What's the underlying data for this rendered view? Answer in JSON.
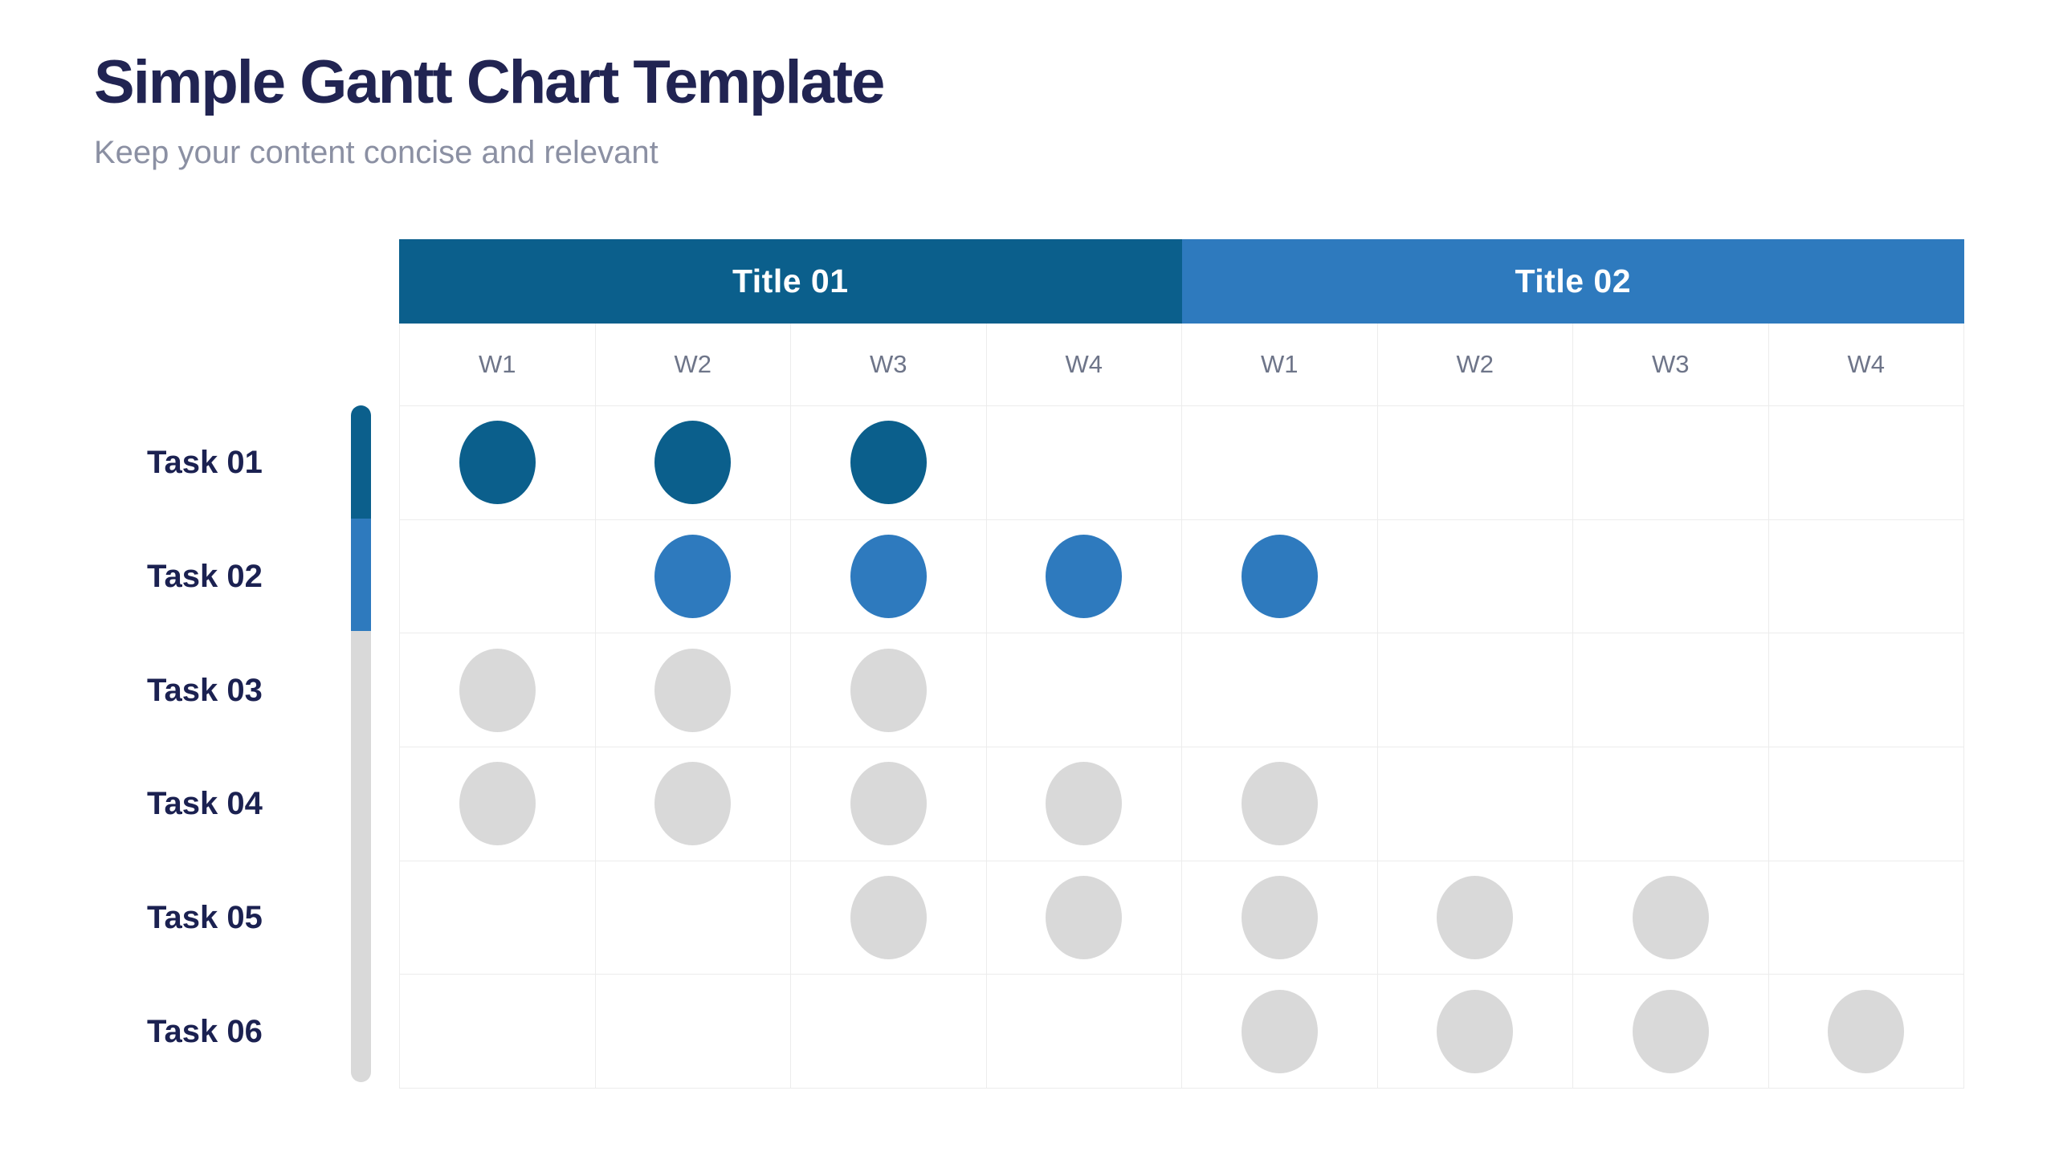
{
  "page": {
    "title": "Simple Gantt Chart Template",
    "subtitle": "Keep your content concise and relevant"
  },
  "colors": {
    "title_navy": "#212452",
    "subtitle_gray": "#8b90a3",
    "task_navy": "#1b2151",
    "week_label_gray": "#6e7589",
    "gridline": "#ececec",
    "primary_dark": "#0b5f8c",
    "primary_blue": "#2e7abe",
    "inactive_gray": "#d9d9d9"
  },
  "chart_data": {
    "type": "gantt",
    "title": "Simple Gantt Chart Template",
    "subtitle": "Keep your content concise and relevant",
    "groups": [
      {
        "label": "Title 01",
        "color": "#0b5f8c",
        "weeks": [
          "W1",
          "W2",
          "W3",
          "W4"
        ]
      },
      {
        "label": "Title 02",
        "color": "#2e7abe",
        "weeks": [
          "W1",
          "W2",
          "W3",
          "W4"
        ]
      }
    ],
    "columns": [
      "W1",
      "W2",
      "W3",
      "W4",
      "W1",
      "W2",
      "W3",
      "W4"
    ],
    "state_colors": {
      "dark": "#0b5f8c",
      "blue": "#2e7abe",
      "gray": "#d9d9d9"
    },
    "tasks": [
      {
        "label": "Task 01",
        "cells": [
          "dark",
          "dark",
          "dark",
          "",
          "",
          "",
          "",
          ""
        ]
      },
      {
        "label": "Task 02",
        "cells": [
          "",
          "blue",
          "blue",
          "blue",
          "blue",
          "",
          "",
          ""
        ]
      },
      {
        "label": "Task 03",
        "cells": [
          "gray",
          "gray",
          "gray",
          "",
          "",
          "",
          "",
          ""
        ]
      },
      {
        "label": "Task 04",
        "cells": [
          "gray",
          "gray",
          "gray",
          "gray",
          "gray",
          "",
          "",
          ""
        ]
      },
      {
        "label": "Task 05",
        "cells": [
          "",
          "",
          "gray",
          "gray",
          "gray",
          "gray",
          "gray",
          ""
        ]
      },
      {
        "label": "Task 06",
        "cells": [
          "",
          "",
          "",
          "",
          "gray",
          "gray",
          "gray",
          "gray"
        ]
      }
    ],
    "progress_bar": {
      "segments": [
        {
          "color_key": "dark",
          "rows": 1
        },
        {
          "color_key": "blue",
          "rows": 1
        },
        {
          "color_key": "gray",
          "rows": 4
        }
      ]
    }
  }
}
